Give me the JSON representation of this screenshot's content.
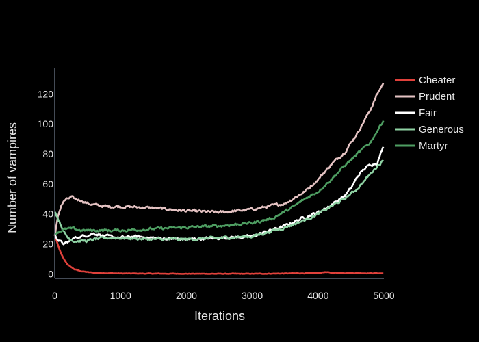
{
  "chart_data": {
    "type": "line",
    "xlabel": "Iterations",
    "ylabel": "Number of vampires",
    "xlim": [
      0,
      5000
    ],
    "ylim": [
      -3,
      137
    ],
    "x_ticks": [
      0,
      1000,
      2000,
      3000,
      4000,
      5000
    ],
    "y_ticks": [
      0,
      20,
      40,
      60,
      80,
      100,
      120
    ],
    "x_tick_labels": [
      "0",
      "1000",
      "2000",
      "3000",
      "4000",
      "5000"
    ],
    "y_tick_labels": [
      "0",
      "20",
      "40",
      "60",
      "80",
      "100",
      "120"
    ],
    "grid": false,
    "legend_position": "right",
    "series": [
      {
        "name": "Cheater",
        "color": "#e0413b",
        "x": [
          0,
          50,
          100,
          150,
          200,
          300,
          400,
          500,
          600,
          800,
          1000,
          1500,
          2000,
          2500,
          3000,
          3500,
          4000,
          4100,
          4200,
          4500,
          5000
        ],
        "y": [
          26,
          19,
          13,
          9,
          6,
          3,
          1.8,
          1.2,
          0.8,
          0.5,
          0.3,
          0.2,
          0.1,
          0.1,
          0.1,
          0.3,
          0.6,
          1.2,
          0.8,
          0.6,
          0.4
        ]
      },
      {
        "name": "Prudent",
        "color": "#e5c3c3",
        "x": [
          0,
          50,
          100,
          150,
          200,
          250,
          300,
          400,
          500,
          600,
          800,
          1000,
          1500,
          2000,
          2500,
          3000,
          3500,
          3800,
          4000,
          4200,
          4400,
          4600,
          4800,
          4900,
          5000
        ],
        "y": [
          26,
          38,
          46,
          49,
          50,
          51,
          50,
          49,
          47,
          46,
          45,
          45,
          44,
          42,
          41,
          43,
          47,
          55,
          63,
          73,
          81,
          94,
          110,
          120,
          128
        ]
      },
      {
        "name": "Fair",
        "color": "#ffffff",
        "x": [
          0,
          50,
          100,
          150,
          200,
          300,
          400,
          500,
          600,
          700,
          800,
          1000,
          1200,
          1500,
          2000,
          2500,
          3000,
          3200,
          3500,
          3800,
          4000,
          4200,
          4400,
          4500,
          4600,
          4700,
          4800,
          4900,
          5000
        ],
        "y": [
          26,
          23,
          21,
          20,
          21,
          24,
          25,
          26,
          27,
          26,
          25,
          24,
          25,
          24,
          23,
          24,
          25,
          28,
          32,
          38,
          41,
          46,
          52,
          57,
          65,
          70,
          73,
          74,
          86
        ]
      },
      {
        "name": "Generous",
        "color": "#8fd3a4",
        "x": [
          0,
          50,
          100,
          150,
          200,
          300,
          400,
          500,
          600,
          800,
          1000,
          1500,
          2000,
          2500,
          3000,
          3500,
          3800,
          4000,
          4200,
          4400,
          4600,
          4800,
          4900,
          5000
        ],
        "y": [
          42,
          37,
          32,
          27,
          24,
          22,
          22,
          22,
          23,
          24,
          24,
          23,
          23,
          24,
          25,
          31,
          36,
          40,
          45,
          50,
          57,
          67,
          72,
          76
        ]
      },
      {
        "name": "Martyr",
        "color": "#4e9e62",
        "x": [
          0,
          50,
          100,
          200,
          300,
          400,
          500,
          600,
          800,
          1000,
          1500,
          2000,
          2500,
          3000,
          3300,
          3600,
          3800,
          4000,
          4200,
          4400,
          4600,
          4800,
          5000
        ],
        "y": [
          27,
          28,
          29,
          30,
          30,
          29,
          29,
          29,
          29,
          29,
          30,
          31,
          32,
          34,
          37,
          44,
          50,
          55,
          63,
          72,
          80,
          88,
          103
        ]
      }
    ]
  }
}
